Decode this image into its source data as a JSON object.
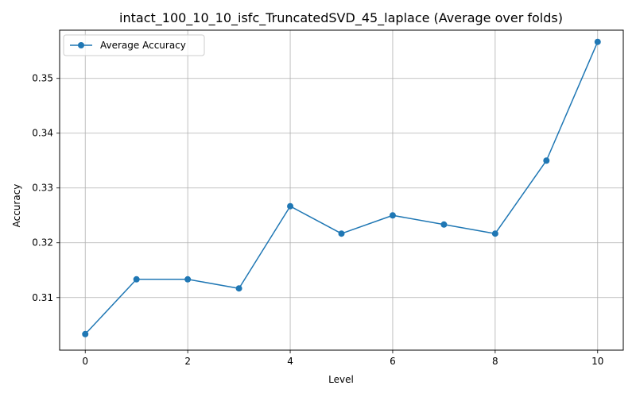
{
  "chart_data": {
    "type": "line",
    "title": "intact_100_10_10_isfc_TruncatedSVD_45_laplace (Average over folds)",
    "xlabel": "Level",
    "ylabel": "Accuracy",
    "xlim": [
      -0.5,
      10.5
    ],
    "ylim": [
      0.3004,
      0.3588
    ],
    "x_ticks": [
      0,
      2,
      4,
      6,
      8,
      10
    ],
    "y_ticks": [
      0.31,
      0.32,
      0.33,
      0.34,
      0.35
    ],
    "x_tick_labels": [
      "0",
      "2",
      "4",
      "6",
      "8",
      "10"
    ],
    "y_tick_labels": [
      "0.31",
      "0.32",
      "0.33",
      "0.34",
      "0.35"
    ],
    "grid": true,
    "legend_position": "top-left",
    "series": [
      {
        "name": "Average Accuracy",
        "color": "#1f77b4",
        "marker": "circle",
        "x": [
          0,
          1,
          2,
          3,
          4,
          5,
          6,
          7,
          8,
          9,
          10
        ],
        "y": [
          0.30333,
          0.31333,
          0.31333,
          0.31167,
          0.32667,
          0.32167,
          0.325,
          0.32333,
          0.32167,
          0.335,
          0.35667
        ]
      }
    ]
  }
}
